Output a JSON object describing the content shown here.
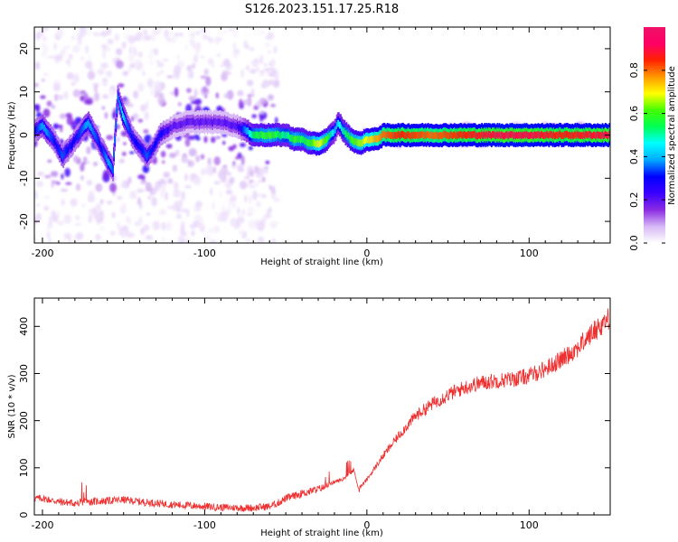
{
  "title": "S126.2023.151.17.25.R18",
  "chart_data": [
    {
      "type": "heatmap",
      "xlabel": "Height of straight line (km)",
      "ylabel": "Frequency (Hz)",
      "xlim": [
        -205,
        150
      ],
      "ylim": [
        -25,
        25
      ],
      "xticks": [
        -200,
        -100,
        0,
        100
      ],
      "yticks": [
        -20,
        -10,
        0,
        10,
        20
      ],
      "colorbar": {
        "label": "Normalized spectral amplitude",
        "range": [
          0,
          1
        ],
        "ticks": [
          0.0,
          0.2,
          0.4,
          0.6,
          0.8
        ],
        "tick_labels": [
          "0.0",
          "0.2",
          "0.4",
          "0.6",
          "0.8"
        ],
        "colors": [
          "#ffffff",
          "#d7b8f5",
          "#8a2be2",
          "#3a00ff",
          "#0000ff",
          "#00aaff",
          "#00ffff",
          "#00ff55",
          "#44ff00",
          "#ffff00",
          "#ff9900",
          "#ff2200",
          "#ff0066",
          "#ee1166"
        ]
      },
      "ridge": {
        "x": [
          -205,
          -200,
          -196,
          -192,
          -188,
          -184,
          -180,
          -176,
          -172,
          -168,
          -164,
          -160,
          -157,
          -154,
          -151,
          -148,
          -144,
          -140,
          -136,
          -132,
          -128,
          -120,
          -110,
          -100,
          -90,
          -80,
          -70,
          -60,
          -50,
          -45,
          -40,
          -35,
          -30,
          -25,
          -20,
          -18,
          -15,
          -10,
          -5,
          0,
          5,
          10,
          20,
          40,
          60,
          80,
          100,
          120,
          150
        ],
        "y": [
          1,
          2,
          0,
          -2,
          -5,
          -3,
          -1,
          1,
          3,
          0,
          -3,
          -6,
          -8,
          9,
          5,
          2,
          -1,
          -3,
          -5,
          -3,
          0,
          2,
          3,
          3,
          3,
          2,
          0,
          0,
          0,
          -1,
          -1,
          -2,
          -2,
          -1,
          1,
          3,
          1,
          -1,
          -2,
          -1,
          -1,
          0,
          0,
          0,
          0,
          0,
          0,
          0,
          0
        ],
        "amp": [
          0.3,
          0.4,
          0.35,
          0.3,
          0.35,
          0.3,
          0.3,
          0.35,
          0.4,
          0.35,
          0.3,
          0.4,
          0.35,
          0.35,
          0.45,
          0.35,
          0.3,
          0.3,
          0.35,
          0.3,
          0.3,
          0.2,
          0.2,
          0.2,
          0.2,
          0.22,
          0.55,
          0.6,
          0.5,
          0.6,
          0.55,
          0.6,
          0.7,
          0.6,
          0.4,
          0.45,
          0.5,
          0.6,
          0.65,
          0.7,
          0.75,
          0.8,
          0.85,
          0.8,
          0.85,
          0.9,
          0.9,
          0.85,
          0.9
        ]
      }
    },
    {
      "type": "line",
      "xlabel": "Height of straight line (km)",
      "ylabel": "SNR (10 * v/v)",
      "xlim": [
        -205,
        150
      ],
      "ylim": [
        0,
        460
      ],
      "xticks": [
        -200,
        -100,
        0,
        100
      ],
      "yticks": [
        0,
        100,
        200,
        300,
        400
      ],
      "color": "#ee3030",
      "x": [
        -205,
        -200,
        -190,
        -180,
        -170,
        -160,
        -150,
        -140,
        -130,
        -120,
        -110,
        -100,
        -90,
        -80,
        -70,
        -60,
        -55,
        -50,
        -45,
        -40,
        -35,
        -30,
        -25,
        -20,
        -15,
        -10,
        -8,
        -5,
        0,
        5,
        10,
        20,
        30,
        40,
        50,
        60,
        70,
        80,
        90,
        100,
        110,
        120,
        130,
        140,
        150
      ],
      "y": [
        35,
        35,
        28,
        25,
        28,
        30,
        32,
        28,
        25,
        22,
        20,
        18,
        16,
        15,
        15,
        18,
        25,
        35,
        40,
        45,
        50,
        55,
        60,
        70,
        75,
        90,
        95,
        55,
        75,
        100,
        125,
        170,
        210,
        235,
        255,
        270,
        280,
        285,
        288,
        295,
        310,
        330,
        355,
        390,
        420
      ]
    }
  ]
}
